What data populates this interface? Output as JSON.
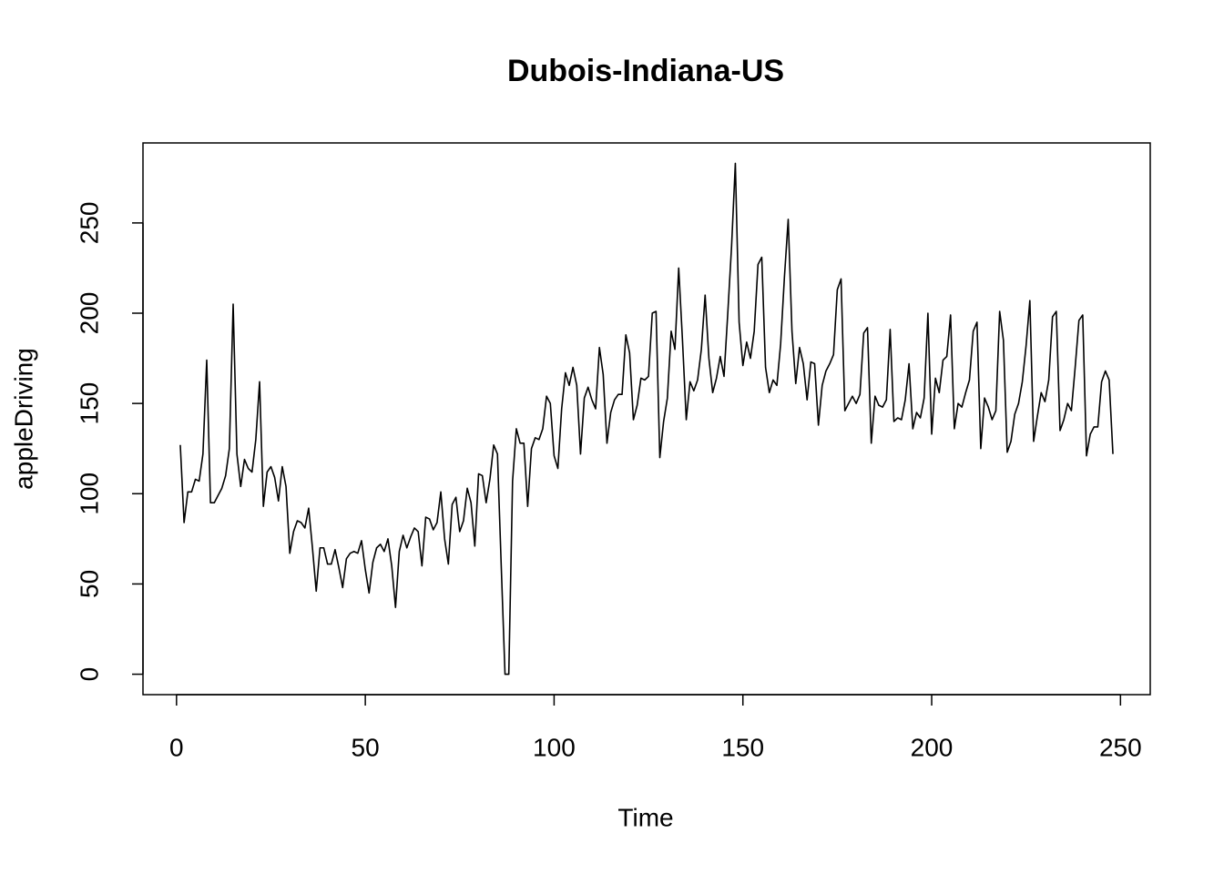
{
  "chart_data": {
    "type": "line",
    "title": "Dubois-Indiana-US",
    "x_label": "Time",
    "y_label": "appleDriving",
    "x": [
      1,
      2,
      3,
      4,
      5,
      6,
      7,
      8,
      9,
      10,
      11,
      12,
      13,
      14,
      15,
      16,
      17,
      18,
      19,
      20,
      21,
      22,
      23,
      24,
      25,
      26,
      27,
      28,
      29,
      30,
      31,
      32,
      33,
      34,
      35,
      36,
      37,
      38,
      39,
      40,
      41,
      42,
      43,
      44,
      45,
      46,
      47,
      48,
      49,
      50,
      51,
      52,
      53,
      54,
      55,
      56,
      57,
      58,
      59,
      60,
      61,
      62,
      63,
      64,
      65,
      66,
      67,
      68,
      69,
      70,
      71,
      72,
      73,
      74,
      75,
      76,
      77,
      78,
      79,
      80,
      81,
      82,
      83,
      84,
      85,
      86,
      87,
      88,
      89,
      90,
      91,
      92,
      93,
      94,
      95,
      96,
      97,
      98,
      99,
      100,
      101,
      102,
      103,
      104,
      105,
      106,
      107,
      108,
      109,
      110,
      111,
      112,
      113,
      114,
      115,
      116,
      117,
      118,
      119,
      120,
      121,
      122,
      123,
      124,
      125,
      126,
      127,
      128,
      129,
      130,
      131,
      132,
      133,
      134,
      135,
      136,
      137,
      138,
      139,
      140,
      141,
      142,
      143,
      144,
      145,
      146,
      147,
      148,
      149,
      150,
      151,
      152,
      153,
      154,
      155,
      156,
      157,
      158,
      159,
      160,
      161,
      162,
      163,
      164,
      165,
      166,
      167,
      168,
      169,
      170,
      171,
      172,
      173,
      174,
      175,
      176,
      177,
      178,
      179,
      180,
      181,
      182,
      183,
      184,
      185,
      186,
      187,
      188,
      189,
      190,
      191,
      192,
      193,
      194,
      195,
      196,
      197,
      198,
      199,
      200,
      201,
      202,
      203,
      204,
      205,
      206,
      207,
      208,
      209,
      210,
      211,
      212,
      213,
      214,
      215,
      216,
      217,
      218,
      219,
      220,
      221,
      222,
      223,
      224,
      225,
      226,
      227,
      228,
      229,
      230,
      231,
      232,
      233,
      234,
      235,
      236,
      237,
      238,
      239,
      240,
      241,
      242,
      243,
      244,
      245,
      246,
      247,
      248
    ],
    "series": [
      {
        "name": "appleDriving",
        "color": "#000000",
        "values": [
          127,
          84,
          101,
          101,
          108,
          107,
          122,
          174,
          95,
          95,
          99,
          103,
          110,
          125,
          205,
          122,
          104,
          119,
          114,
          112,
          130,
          162,
          93,
          112,
          115,
          109,
          96,
          115,
          104,
          67,
          79,
          85,
          84,
          81,
          92,
          70,
          46,
          70,
          70,
          61,
          61,
          69,
          59,
          48,
          64,
          67,
          68,
          67,
          74,
          58,
          45,
          62,
          70,
          72,
          68,
          75,
          60,
          37,
          68,
          77,
          70,
          76,
          81,
          79,
          60,
          87,
          86,
          80,
          84,
          101,
          75,
          61,
          94,
          98,
          79,
          85,
          103,
          95,
          71,
          111,
          110,
          95,
          108,
          127,
          122,
          60,
          0,
          0,
          107,
          136,
          128,
          128,
          93,
          125,
          131,
          130,
          136,
          154,
          150,
          121,
          114,
          147,
          167,
          160,
          170,
          160,
          122,
          153,
          159,
          152,
          147,
          181,
          166,
          128,
          145,
          152,
          155,
          155,
          188,
          178,
          141,
          149,
          164,
          163,
          165,
          200,
          201,
          120,
          140,
          153,
          190,
          180,
          225,
          185,
          141,
          162,
          157,
          163,
          180,
          210,
          175,
          156,
          164,
          176,
          165,
          200,
          237,
          283,
          195,
          171,
          184,
          175,
          190,
          227,
          231,
          170,
          156,
          163,
          160,
          183,
          220,
          252,
          190,
          161,
          181,
          172,
          152,
          173,
          172,
          138,
          160,
          168,
          172,
          177,
          213,
          219,
          146,
          150,
          154,
          150,
          155,
          189,
          192,
          128,
          154,
          149,
          148,
          152,
          191,
          140,
          142,
          141,
          152,
          172,
          136,
          145,
          142,
          153,
          200,
          133,
          164,
          156,
          174,
          176,
          199,
          136,
          150,
          148,
          156,
          163,
          190,
          195,
          125,
          153,
          148,
          141,
          146,
          201,
          185,
          123,
          129,
          144,
          150,
          162,
          182,
          207,
          129,
          143,
          156,
          151,
          163,
          198,
          201,
          135,
          141,
          150,
          146,
          170,
          196,
          199,
          121,
          133,
          137,
          137,
          162,
          168,
          163,
          122
        ]
      }
    ],
    "xlim": [
      -8.88,
      257.88
    ],
    "ylim": [
      -11.32,
      294.32
    ],
    "xticks": [
      0,
      50,
      100,
      150,
      200,
      250
    ],
    "yticks": [
      0,
      50,
      100,
      150,
      200,
      250
    ]
  }
}
